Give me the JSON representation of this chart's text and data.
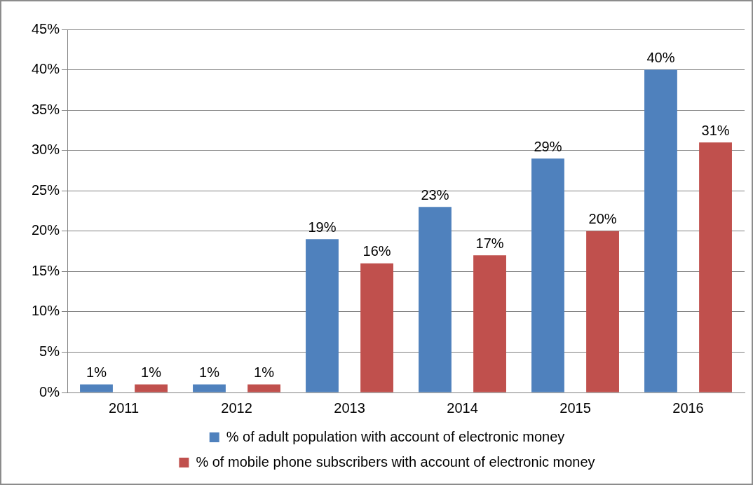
{
  "chart_data": {
    "type": "bar",
    "categories": [
      "2011",
      "2012",
      "2013",
      "2014",
      "2015",
      "2016"
    ],
    "series": [
      {
        "name": "% of adult population with account of electronic money",
        "color": "#4f81bd",
        "values": [
          1,
          1,
          19,
          23,
          29,
          40
        ],
        "value_labels": [
          "1%",
          "1%",
          "19%",
          "23%",
          "29%",
          "40%"
        ]
      },
      {
        "name": "% of mobile phone subscribers with account of electronic money",
        "color": "#c0504d",
        "values": [
          1,
          1,
          16,
          17,
          20,
          31
        ],
        "value_labels": [
          "1%",
          "1%",
          "16%",
          "17%",
          "20%",
          "31%"
        ]
      }
    ],
    "ylim": [
      0,
      45
    ],
    "yticks": [
      {
        "value": 0,
        "label": "0%"
      },
      {
        "value": 5,
        "label": "5%"
      },
      {
        "value": 10,
        "label": "10%"
      },
      {
        "value": 15,
        "label": "15%"
      },
      {
        "value": 20,
        "label": "20%"
      },
      {
        "value": 25,
        "label": "25%"
      },
      {
        "value": 30,
        "label": "30%"
      },
      {
        "value": 35,
        "label": "35%"
      },
      {
        "value": 40,
        "label": "40%"
      },
      {
        "value": 45,
        "label": "45%"
      }
    ],
    "grid": "y",
    "legend": "bottom"
  }
}
